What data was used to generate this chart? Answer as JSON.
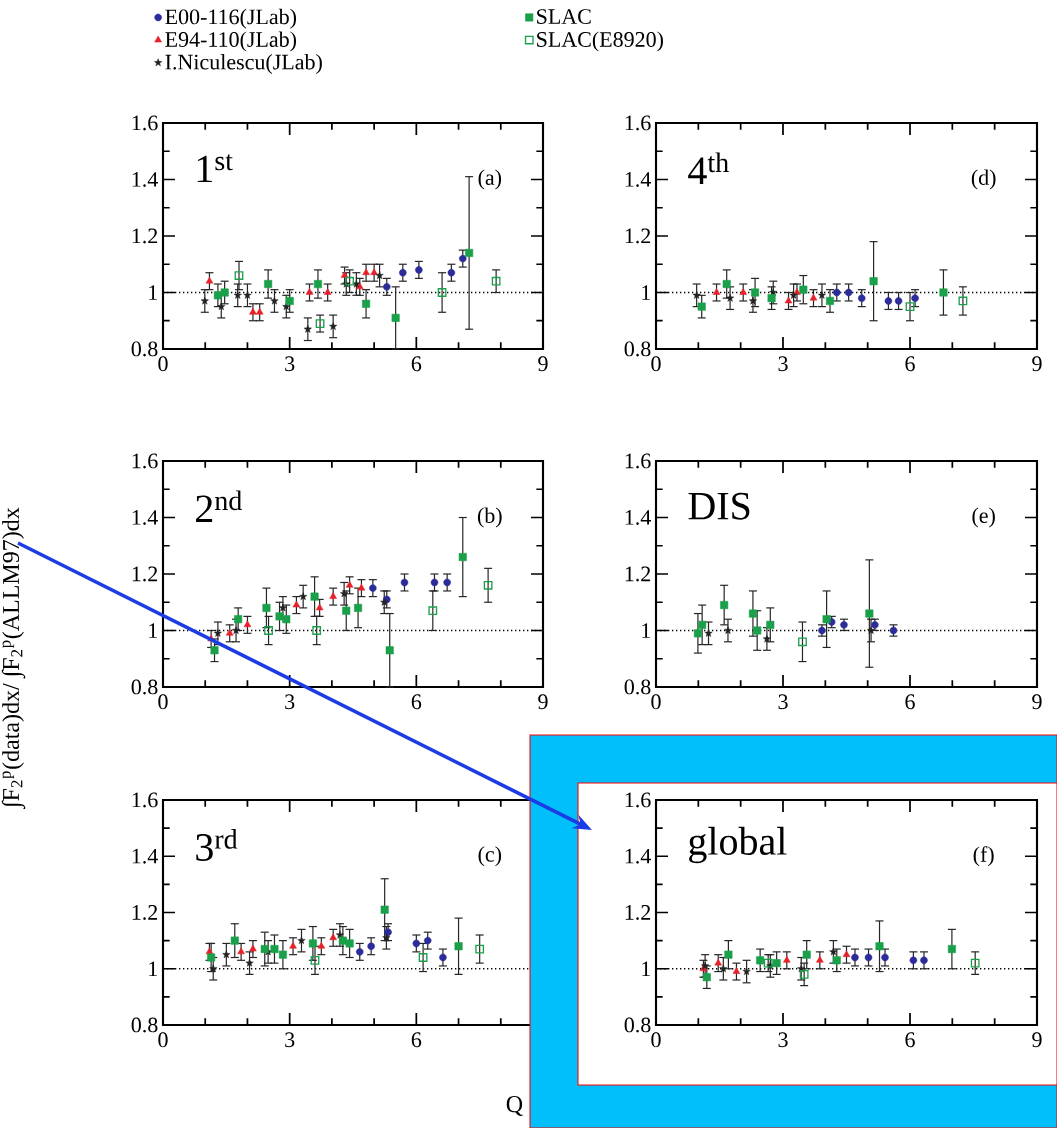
{
  "chart_data": [
    {
      "type": "scatter",
      "xlim": [
        0,
        9
      ],
      "ylim": [
        0.8,
        1.6
      ],
      "xticks": [
        0,
        {
          "value": 1,
          "label": null
        },
        {
          "value": 2,
          "label": null
        },
        3,
        {
          "value": 4,
          "label": null
        },
        {
          "value": 5,
          "label": null
        },
        6,
        {
          "value": 7,
          "label": null
        },
        {
          "value": 8,
          "label": null
        },
        9
      ],
      "yticks": [
        0.8,
        {
          "value": 0.9,
          "label": null
        },
        1,
        {
          "value": 1.1,
          "label": null
        },
        1.2,
        {
          "value": 1.3,
          "label": null
        },
        1.4,
        {
          "value": 1.5,
          "label": null
        },
        1.6
      ],
      "annotations": [
        "1$^{st}$",
        "(a)"
      ],
      "legend": "top",
      "ref_lines": [
        {
          "axis": "y",
          "value": 1,
          "line_style": "dotted"
        }
      ],
      "series": [
        {
          "name": "E00-116(JLab)",
          "color": "#2b2b9a",
          "marker": "circle",
          "x": [
            5.3,
            5.68,
            6.06,
            6.83,
            7.1
          ],
          "values": [
            1.02,
            1.07,
            1.08,
            1.07,
            1.12
          ],
          "errors": [
            0.03,
            0.03,
            0.03,
            0.03,
            0.03
          ]
        },
        {
          "name": "E94-110(JLab)",
          "color": "#e8202a",
          "marker": "triangle",
          "x": [
            1.1,
            2.13,
            2.29,
            3.47,
            3.9,
            4.3,
            4.66,
            4.81,
            5.0
          ],
          "values": [
            1.04,
            0.93,
            0.93,
            1.0,
            1.0,
            1.06,
            1.02,
            1.07,
            1.07
          ],
          "errors": [
            0.03,
            0.03,
            0.03,
            0.03,
            0.03,
            0.03,
            0.03,
            0.03,
            0.03
          ]
        },
        {
          "name": "I.Niculescu(JLab)",
          "color": "#222222",
          "marker": "star",
          "x": [
            0.99,
            1.38,
            1.77,
            2.0,
            2.64,
            2.92,
            3.43,
            4.03,
            4.34,
            4.58,
            5.13
          ],
          "values": [
            0.97,
            0.95,
            0.99,
            0.99,
            0.97,
            0.95,
            0.87,
            0.88,
            1.03,
            1.03,
            1.06
          ],
          "errors": [
            0.04,
            0.04,
            0.04,
            0.04,
            0.04,
            0.04,
            0.04,
            0.04,
            0.04,
            0.04,
            0.04
          ]
        },
        {
          "name": "SLAC",
          "color": "#1aa04a",
          "marker": "square",
          "x": [
            1.3,
            1.46,
            2.49,
            3.0,
            3.67,
            4.81,
            5.51,
            7.25
          ],
          "values": [
            0.99,
            1.0,
            1.03,
            0.97,
            1.03,
            0.96,
            0.91,
            1.14
          ],
          "errors": [
            0.04,
            0.04,
            0.05,
            0.04,
            0.05,
            0.05,
            0.11,
            0.27
          ]
        },
        {
          "name": "SLAC(E8920)",
          "color": "#1aa04a",
          "marker": "square-open",
          "x": [
            1.8,
            3.72,
            4.42,
            6.61,
            7.89
          ],
          "values": [
            1.06,
            0.89,
            1.04,
            1.0,
            1.04
          ],
          "errors": [
            0.05,
            0.03,
            0.04,
            0.07,
            0.04
          ]
        }
      ]
    },
    {
      "type": "scatter",
      "xlim": [
        0,
        9
      ],
      "ylim": [
        0.8,
        1.6
      ],
      "xticks": [
        0,
        {
          "value": 1,
          "label": null
        },
        {
          "value": 2,
          "label": null
        },
        3,
        {
          "value": 4,
          "label": null
        },
        {
          "value": 5,
          "label": null
        },
        6,
        {
          "value": 7,
          "label": null
        },
        {
          "value": 8,
          "label": null
        },
        9
      ],
      "yticks": [
        0.8,
        {
          "value": 0.9,
          "label": null
        },
        1,
        {
          "value": 1.1,
          "label": null
        },
        1.2,
        {
          "value": 1.3,
          "label": null
        },
        1.4,
        {
          "value": 1.5,
          "label": null
        },
        1.6
      ],
      "annotations": [
        "4$^{th}$",
        "(d)"
      ],
      "ref_lines": [
        {
          "axis": "y",
          "value": 1,
          "line_style": "dotted"
        }
      ],
      "series": [
        {
          "color": "#2b2b9a",
          "marker": "circle",
          "x": [
            4.27,
            4.55,
            4.86,
            5.49,
            5.73,
            6.12
          ],
          "values": [
            1.0,
            1.0,
            0.98,
            0.97,
            0.97,
            0.98
          ],
          "errors": [
            0.03,
            0.03,
            0.03,
            0.03,
            0.03,
            0.03
          ]
        },
        {
          "color": "#e8202a",
          "marker": "triangle",
          "x": [
            1.43,
            2.06,
            3.13,
            3.33,
            3.72
          ],
          "values": [
            1.0,
            1.0,
            0.97,
            1.0,
            0.98
          ],
          "errors": [
            0.03,
            0.03,
            0.03,
            0.03,
            0.03
          ]
        },
        {
          "color": "#222222",
          "marker": "star",
          "x": [
            0.96,
            1.75,
            2.29,
            2.77,
            3.25,
            3.92
          ],
          "values": [
            0.99,
            0.98,
            0.97,
            1.0,
            0.99,
            0.99
          ],
          "errors": [
            0.04,
            0.04,
            0.04,
            0.04,
            0.04,
            0.04
          ]
        },
        {
          "color": "#1aa04a",
          "marker": "square",
          "x": [
            1.08,
            1.67,
            2.34,
            2.73,
            3.48,
            4.11,
            5.14,
            6.79
          ],
          "values": [
            0.95,
            1.03,
            1.0,
            0.98,
            1.01,
            0.97,
            1.04,
            1.0
          ],
          "errors": [
            0.04,
            0.05,
            0.05,
            0.04,
            0.05,
            0.04,
            0.14,
            0.08
          ]
        },
        {
          "color": "#1aa04a",
          "marker": "square-open",
          "x": [
            6.0,
            7.25
          ],
          "values": [
            0.95,
            0.97
          ],
          "errors": [
            0.05,
            0.05
          ]
        }
      ]
    },
    {
      "type": "scatter",
      "xlim": [
        0,
        9
      ],
      "ylim": [
        0.8,
        1.6
      ],
      "xticks": [
        0,
        {
          "value": 1,
          "label": null
        },
        {
          "value": 2,
          "label": null
        },
        3,
        {
          "value": 4,
          "label": null
        },
        {
          "value": 5,
          "label": null
        },
        6,
        {
          "value": 7,
          "label": null
        },
        {
          "value": 8,
          "label": null
        },
        9
      ],
      "yticks": [
        0.8,
        {
          "value": 0.9,
          "label": null
        },
        1,
        {
          "value": 1.1,
          "label": null
        },
        1.2,
        {
          "value": 1.3,
          "label": null
        },
        1.4,
        {
          "value": 1.5,
          "label": null
        },
        1.6
      ],
      "annotations": [
        "2$^{nd}$",
        "(b)"
      ],
      "ylabel": "∫F$_{2}$$^{p}$(data)dx/ ∫F$_{2}$$^{p}$(ALLM97)dx",
      "ref_lines": [
        {
          "axis": "y",
          "value": 1,
          "line_style": "dotted"
        }
      ],
      "series": [
        {
          "color": "#2b2b9a",
          "marker": "circle",
          "x": [
            4.97,
            5.3,
            5.72,
            6.43,
            6.73
          ],
          "values": [
            1.15,
            1.11,
            1.17,
            1.17,
            1.17
          ],
          "errors": [
            0.03,
            0.03,
            0.03,
            0.03,
            0.03
          ]
        },
        {
          "color": "#e8202a",
          "marker": "triangle",
          "x": [
            1.14,
            1.58,
            2.0,
            3.16,
            3.71,
            4.03,
            4.42,
            4.7
          ],
          "values": [
            0.97,
            0.99,
            1.02,
            1.09,
            1.08,
            1.12,
            1.16,
            1.15
          ],
          "errors": [
            0.03,
            0.03,
            0.03,
            0.03,
            0.03,
            0.03,
            0.03,
            0.03
          ]
        },
        {
          "color": "#222222",
          "marker": "star",
          "x": [
            1.3,
            1.73,
            2.84,
            3.32,
            4.29,
            5.24
          ],
          "values": [
            0.99,
            1.0,
            1.08,
            1.12,
            1.13,
            1.1
          ],
          "errors": [
            0.04,
            0.04,
            0.04,
            0.04,
            0.04,
            0.04
          ]
        },
        {
          "color": "#1aa04a",
          "marker": "square",
          "x": [
            1.22,
            1.78,
            2.45,
            2.76,
            2.92,
            3.59,
            4.34,
            4.62,
            5.37,
            7.1
          ],
          "values": [
            0.93,
            1.04,
            1.08,
            1.05,
            1.04,
            1.12,
            1.07,
            1.08,
            0.93,
            1.26
          ],
          "errors": [
            0.04,
            0.04,
            0.07,
            0.05,
            0.05,
            0.07,
            0.07,
            0.07,
            0.13,
            0.14
          ]
        },
        {
          "color": "#1aa04a",
          "marker": "square-open",
          "x": [
            2.5,
            3.64,
            6.39,
            7.7
          ],
          "values": [
            1.0,
            1.0,
            1.07,
            1.16
          ],
          "errors": [
            0.05,
            0.05,
            0.07,
            0.06
          ]
        }
      ]
    },
    {
      "type": "scatter",
      "xlim": [
        0,
        9
      ],
      "ylim": [
        0.8,
        1.6
      ],
      "xticks": [
        0,
        {
          "value": 1,
          "label": null
        },
        {
          "value": 2,
          "label": null
        },
        3,
        {
          "value": 4,
          "label": null
        },
        {
          "value": 5,
          "label": null
        },
        6,
        {
          "value": 7,
          "label": null
        },
        {
          "value": 8,
          "label": null
        },
        9
      ],
      "yticks": [
        0.8,
        {
          "value": 0.9,
          "label": null
        },
        1,
        {
          "value": 1.1,
          "label": null
        },
        1.2,
        {
          "value": 1.3,
          "label": null
        },
        1.4,
        {
          "value": 1.5,
          "label": null
        },
        1.6
      ],
      "annotations": [
        "DIS",
        "(e)"
      ],
      "ref_lines": [
        {
          "axis": "y",
          "value": 1,
          "line_style": "dotted"
        }
      ],
      "series": [
        {
          "color": "#2b2b9a",
          "marker": "circle",
          "x": [
            3.92,
            4.15,
            4.44,
            5.17,
            5.61
          ],
          "values": [
            1.0,
            1.03,
            1.02,
            1.02,
            1.0
          ],
          "errors": [
            0.02,
            0.02,
            0.02,
            0.02,
            0.02
          ]
        },
        {
          "color": "#222222",
          "marker": "star",
          "x": [
            1.24,
            1.7,
            2.62,
            5.08
          ],
          "values": [
            0.99,
            1.0,
            0.97,
            1.0
          ],
          "errors": [
            0.04,
            0.04,
            0.04,
            0.04
          ]
        },
        {
          "color": "#1aa04a",
          "marker": "square",
          "x": [
            0.99,
            1.09,
            1.61,
            2.29,
            2.39,
            2.7,
            4.03,
            5.04
          ],
          "values": [
            0.99,
            1.02,
            1.09,
            1.06,
            1.0,
            1.02,
            1.04,
            1.06
          ],
          "errors": [
            0.07,
            0.07,
            0.07,
            0.08,
            0.07,
            0.06,
            0.1,
            0.19
          ]
        },
        {
          "color": "#1aa04a",
          "marker": "square-open",
          "x": [
            3.46
          ],
          "values": [
            0.96
          ],
          "errors": [
            0.07
          ]
        }
      ]
    },
    {
      "type": "scatter",
      "xlim": [
        0,
        9
      ],
      "ylim": [
        0.8,
        1.6
      ],
      "xticks": [
        0,
        {
          "value": 1,
          "label": null
        },
        {
          "value": 2,
          "label": null
        },
        3,
        {
          "value": 4,
          "label": null
        },
        {
          "value": 5,
          "label": null
        },
        6,
        {
          "value": 7,
          "label": null
        },
        {
          "value": 8,
          "label": null
        },
        {
          "value": 9,
          "label": null
        }
      ],
      "yticks": [
        0.8,
        {
          "value": 0.9,
          "label": null
        },
        1,
        {
          "value": 1.1,
          "label": null
        },
        1.2,
        {
          "value": 1.3,
          "label": null
        },
        1.4,
        {
          "value": 1.5,
          "label": null
        },
        1.6
      ],
      "annotations": [
        "3$^{rd}$",
        "(c)"
      ],
      "xlabel": "Q",
      "ref_lines": [
        {
          "axis": "y",
          "value": 1,
          "line_style": "dotted"
        }
      ],
      "series": [
        {
          "color": "#2b2b9a",
          "marker": "circle",
          "x": [
            4.66,
            4.93,
            5.33,
            6.0,
            6.27,
            6.63
          ],
          "values": [
            1.06,
            1.08,
            1.13,
            1.09,
            1.1,
            1.04
          ],
          "errors": [
            0.03,
            0.03,
            0.03,
            0.03,
            0.03,
            0.03
          ]
        },
        {
          "color": "#e8202a",
          "marker": "triangle",
          "x": [
            1.1,
            1.85,
            2.13,
            3.08,
            3.75,
            4.03
          ],
          "values": [
            1.06,
            1.06,
            1.07,
            1.08,
            1.08,
            1.11
          ],
          "errors": [
            0.03,
            0.03,
            0.03,
            0.03,
            0.03,
            0.03
          ]
        },
        {
          "color": "#222222",
          "marker": "star",
          "x": [
            1.19,
            1.5,
            2.05,
            2.49,
            3.28,
            4.19,
            5.29
          ],
          "values": [
            1.0,
            1.05,
            1.02,
            1.06,
            1.1,
            1.12,
            1.11
          ],
          "errors": [
            0.04,
            0.04,
            0.04,
            0.04,
            0.04,
            0.04,
            0.04
          ]
        },
        {
          "color": "#1aa04a",
          "marker": "square",
          "x": [
            1.14,
            1.7,
            2.41,
            2.64,
            2.84,
            3.55,
            4.26,
            4.42,
            5.25,
            7.0
          ],
          "values": [
            1.04,
            1.1,
            1.07,
            1.07,
            1.05,
            1.09,
            1.1,
            1.09,
            1.21,
            1.08
          ],
          "errors": [
            0.05,
            0.06,
            0.06,
            0.05,
            0.05,
            0.06,
            0.05,
            0.05,
            0.11,
            0.1
          ]
        },
        {
          "color": "#1aa04a",
          "marker": "square-open",
          "x": [
            3.6,
            6.16,
            7.5
          ],
          "values": [
            1.03,
            1.04,
            1.07
          ],
          "errors": [
            0.05,
            0.05,
            0.05
          ]
        }
      ]
    },
    {
      "type": "scatter",
      "xlim": [
        0,
        9
      ],
      "ylim": [
        0.8,
        1.6
      ],
      "xticks": [
        0,
        {
          "value": 1,
          "label": null
        },
        {
          "value": 2,
          "label": null
        },
        3,
        {
          "value": 4,
          "label": null
        },
        {
          "value": 5,
          "label": null
        },
        6,
        {
          "value": 7,
          "label": null
        },
        {
          "value": 8,
          "label": null
        },
        9
      ],
      "yticks": [
        0.8,
        {
          "value": 0.9,
          "label": null
        },
        1,
        {
          "value": 1.1,
          "label": null
        },
        1.2,
        {
          "value": 1.3,
          "label": null
        },
        1.4,
        {
          "value": 1.5,
          "label": null
        },
        1.6
      ],
      "annotations": [
        "global",
        "(f)"
      ],
      "ref_lines": [
        {
          "axis": "y",
          "value": 1,
          "line_style": "dotted"
        }
      ],
      "series": [
        {
          "color": "#2b2b9a",
          "marker": "circle",
          "x": [
            4.7,
            5.02,
            5.41,
            6.08,
            6.33
          ],
          "values": [
            1.04,
            1.04,
            1.04,
            1.03,
            1.03
          ],
          "errors": [
            0.03,
            0.03,
            0.03,
            0.03,
            0.03
          ]
        },
        {
          "color": "#e8202a",
          "marker": "triangle",
          "x": [
            1.12,
            1.47,
            1.9,
            3.09,
            3.87,
            4.5
          ],
          "values": [
            1.0,
            1.02,
            0.99,
            1.03,
            1.03,
            1.05
          ],
          "errors": [
            0.03,
            0.03,
            0.03,
            0.03,
            0.03,
            0.03
          ]
        },
        {
          "color": "#222222",
          "marker": "star",
          "x": [
            1.16,
            1.59,
            2.14,
            2.7,
            3.43,
            4.19
          ],
          "values": [
            1.01,
            1.0,
            0.99,
            1.01,
            1.0,
            1.06
          ],
          "errors": [
            0.04,
            0.04,
            0.04,
            0.04,
            0.04,
            0.04
          ]
        },
        {
          "color": "#1aa04a",
          "marker": "square",
          "x": [
            1.2,
            1.71,
            2.46,
            2.85,
            3.56,
            4.27,
            5.28,
            6.99
          ],
          "values": [
            0.97,
            1.05,
            1.03,
            1.02,
            1.05,
            1.03,
            1.08,
            1.07
          ],
          "errors": [
            0.04,
            0.05,
            0.04,
            0.04,
            0.05,
            0.04,
            0.09,
            0.07
          ]
        },
        {
          "color": "#1aa04a",
          "marker": "square-open",
          "x": [
            2.65,
            3.5,
            7.54
          ],
          "values": [
            1.02,
            0.98,
            1.02
          ],
          "errors": [
            0.03,
            0.04,
            0.04
          ]
        }
      ]
    }
  ]
}
